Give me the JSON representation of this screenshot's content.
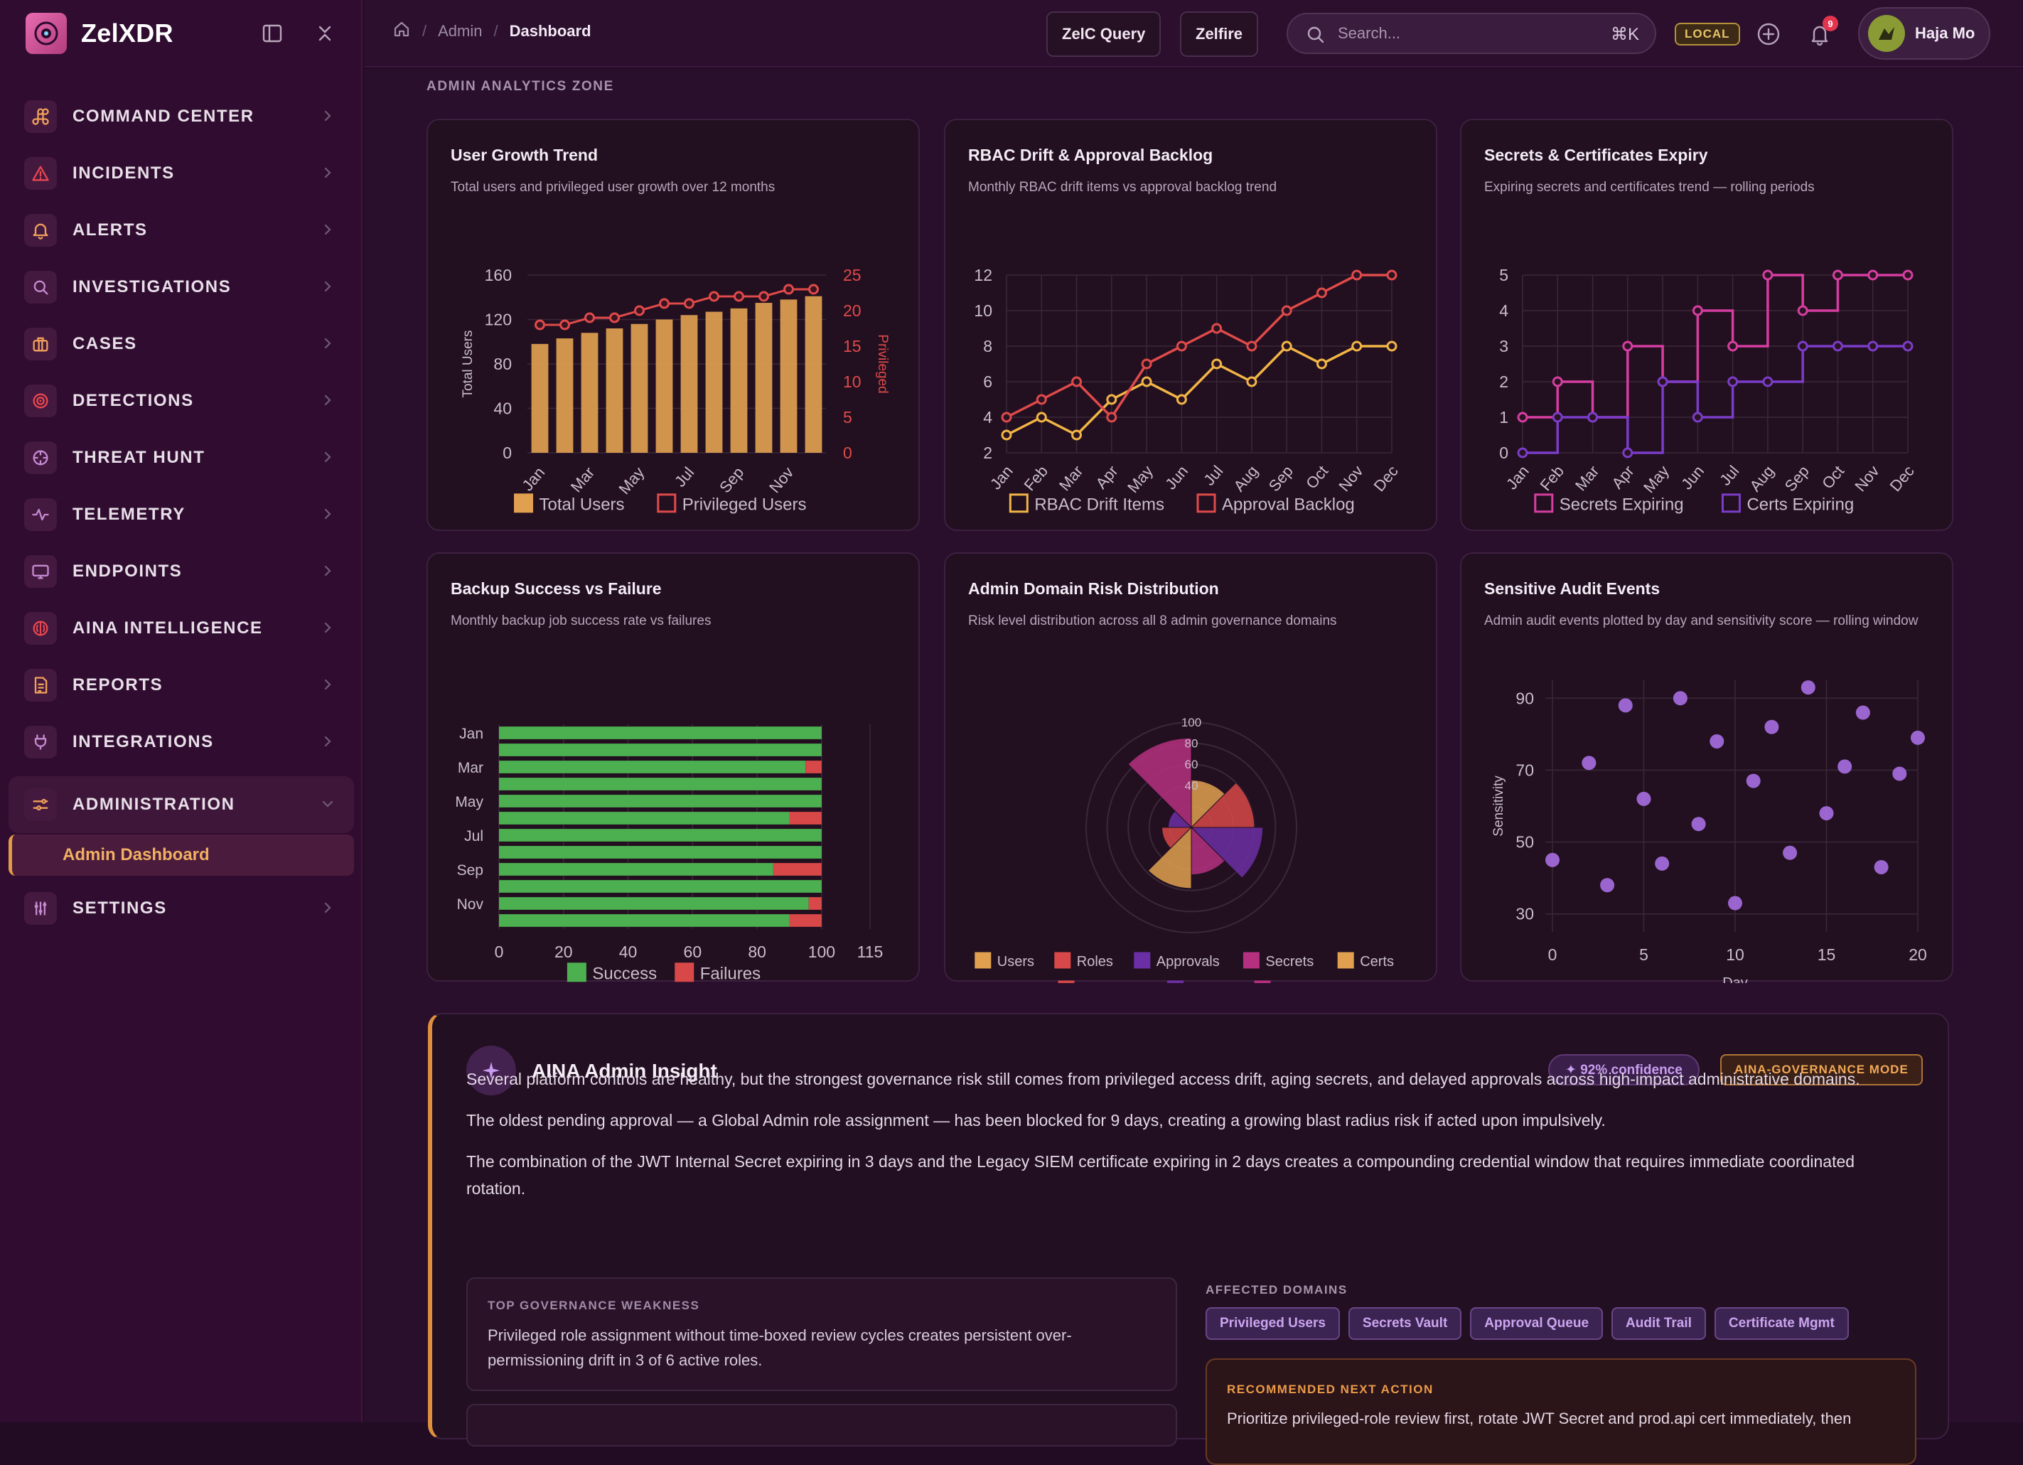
{
  "app": {
    "name": "ZelXDR"
  },
  "sidebar": {
    "items": [
      {
        "label": "COMMAND CENTER",
        "icon": "command-icon",
        "color": "#f0a05a"
      },
      {
        "label": "INCIDENTS",
        "icon": "warning-icon",
        "color": "#e8474f"
      },
      {
        "label": "ALERTS",
        "icon": "bell-icon",
        "color": "#f0a05a"
      },
      {
        "label": "INVESTIGATIONS",
        "icon": "search-icon",
        "color": "#c58ad0"
      },
      {
        "label": "CASES",
        "icon": "briefcase-icon",
        "color": "#f0a05a"
      },
      {
        "label": "DETECTIONS",
        "icon": "target-icon",
        "color": "#e8474f"
      },
      {
        "label": "THREAT HUNT",
        "icon": "crosshair-icon",
        "color": "#c58ad0"
      },
      {
        "label": "TELEMETRY",
        "icon": "pulse-icon",
        "color": "#c58ad0"
      },
      {
        "label": "ENDPOINTS",
        "icon": "monitor-icon",
        "color": "#c58ad0"
      },
      {
        "label": "AINA INTELLIGENCE",
        "icon": "brain-icon",
        "color": "#e8474f"
      },
      {
        "label": "REPORTS",
        "icon": "document-icon",
        "color": "#f0a05a"
      },
      {
        "label": "INTEGRATIONS",
        "icon": "plug-icon",
        "color": "#c58ad0"
      },
      {
        "label": "ADMINISTRATION",
        "icon": "admin-sliders-icon",
        "color": "#f0a05a"
      }
    ],
    "sub_item": "Admin Dashboard",
    "settings": {
      "label": "SETTINGS",
      "icon": "settings-sliders-icon",
      "color": "#c58ad0"
    }
  },
  "header": {
    "breadcrumb": [
      "Admin",
      "Dashboard"
    ],
    "btn_query": "ZelC Query",
    "btn_zelfire": "Zelfire",
    "search_placeholder": "Search...",
    "search_shortcut": "⌘K",
    "env_badge": "LOCAL",
    "notif_count": "9",
    "user_name": "Haja Mo"
  },
  "zone_label": "ADMIN ANALYTICS ZONE",
  "cards": {
    "user_growth": {
      "title": "User Growth Trend",
      "subtitle": "Total users and privileged user growth over 12 months"
    },
    "rbac": {
      "title": "RBAC Drift & Approval Backlog",
      "subtitle": "Monthly RBAC drift items vs approval backlog trend"
    },
    "secrets": {
      "title": "Secrets & Certificates Expiry",
      "subtitle": "Expiring secrets and certificates trend — rolling periods"
    },
    "backup": {
      "title": "Backup Success vs Failure",
      "subtitle": "Monthly backup job success rate vs failures"
    },
    "risk": {
      "title": "Admin Domain Risk Distribution",
      "subtitle": "Risk level distribution across all 8 admin governance domains"
    },
    "audit": {
      "title": "Sensitive Audit Events",
      "subtitle": "Admin audit events plotted by day and sensitivity score — rolling window"
    }
  },
  "chart_data": [
    {
      "id": "user_growth",
      "type": "bar",
      "categories": [
        "Jan",
        "Feb",
        "Mar",
        "Apr",
        "May",
        "Jun",
        "Jul",
        "Aug",
        "Sep",
        "Oct",
        "Nov",
        "Dec"
      ],
      "tick_labels": [
        "Jan",
        "Mar",
        "May",
        "Jul",
        "Sep",
        "Nov"
      ],
      "series": [
        {
          "name": "Total Users",
          "type": "bar",
          "axis": "left",
          "color": "#e0a050",
          "values": [
            98,
            103,
            108,
            112,
            116,
            120,
            124,
            127,
            130,
            135,
            138,
            141
          ]
        },
        {
          "name": "Privileged Users",
          "type": "line",
          "axis": "right",
          "color": "#e04a4a",
          "values": [
            18,
            18,
            19,
            19,
            20,
            21,
            21,
            22,
            22,
            22,
            23,
            23
          ]
        }
      ],
      "ylabel": "Total Users",
      "ylabel_right": "Privileged",
      "ylim": [
        0,
        160
      ],
      "yticks": [
        0,
        40,
        80,
        120,
        160
      ],
      "ylim_right": [
        0,
        25
      ],
      "yticks_right": [
        0,
        5,
        10,
        15,
        20,
        25
      ]
    },
    {
      "id": "rbac",
      "type": "line",
      "categories": [
        "Jan",
        "Feb",
        "Mar",
        "Apr",
        "May",
        "Jun",
        "Jul",
        "Aug",
        "Sep",
        "Oct",
        "Nov",
        "Dec"
      ],
      "series": [
        {
          "name": "RBAC Drift Items",
          "color": "#f2b545",
          "values": [
            3,
            4,
            3,
            5,
            6,
            5,
            7,
            6,
            8,
            7,
            8,
            8
          ]
        },
        {
          "name": "Approval Backlog",
          "color": "#e04a4a",
          "values": [
            4,
            5,
            6,
            4,
            7,
            8,
            9,
            8,
            10,
            11,
            12,
            12
          ]
        }
      ],
      "ylim": [
        2,
        12
      ],
      "yticks": [
        2,
        4,
        6,
        8,
        10,
        12
      ]
    },
    {
      "id": "secrets",
      "type": "line",
      "step": true,
      "categories": [
        "Jan",
        "Feb",
        "Mar",
        "Apr",
        "May",
        "Jun",
        "Jul",
        "Aug",
        "Sep",
        "Oct",
        "Nov",
        "Dec"
      ],
      "series": [
        {
          "name": "Secrets Expiring",
          "color": "#d63ea0",
          "values": [
            1,
            2,
            1,
            3,
            2,
            4,
            3,
            5,
            4,
            5,
            5,
            5
          ]
        },
        {
          "name": "Certs Expiring",
          "color": "#7b3cc8",
          "values": [
            0,
            1,
            1,
            0,
            2,
            1,
            2,
            2,
            3,
            3,
            3,
            3
          ]
        }
      ],
      "ylim": [
        0,
        5
      ],
      "yticks": [
        0,
        1,
        2,
        3,
        4,
        5
      ]
    },
    {
      "id": "backup",
      "type": "bar",
      "orientation": "horizontal",
      "stacked": true,
      "categories": [
        "Jan",
        "Feb",
        "Mar",
        "Apr",
        "May",
        "Jun",
        "Jul",
        "Aug",
        "Sep",
        "Oct",
        "Nov",
        "Dec"
      ],
      "tick_labels": [
        "Jan",
        "Mar",
        "May",
        "Jul",
        "Sep",
        "Nov"
      ],
      "series": [
        {
          "name": "Success",
          "color": "#4caf50",
          "values": [
            100,
            100,
            95,
            100,
            100,
            90,
            100,
            100,
            85,
            100,
            96,
            90
          ]
        },
        {
          "name": "Failures",
          "color": "#d84848",
          "values": [
            0,
            0,
            5,
            0,
            0,
            10,
            0,
            0,
            15,
            0,
            4,
            10
          ]
        }
      ],
      "xlim": [
        0,
        115
      ],
      "xticks": [
        0,
        20,
        40,
        60,
        80,
        100,
        115
      ]
    },
    {
      "id": "risk",
      "type": "polar-area",
      "categories": [
        "Users",
        "Roles",
        "Approvals",
        "Secrets",
        "Certs",
        "Retention",
        "Backup",
        "Audit"
      ],
      "colors": [
        "#e0a050",
        "#d84848",
        "#6b2fa5",
        "#b5307e",
        "#e0a050",
        "#d84848",
        "#6b2fa5",
        "#b5307e"
      ],
      "values": [
        45,
        60,
        68,
        45,
        58,
        28,
        22,
        85
      ],
      "rlim": [
        0,
        100
      ],
      "rticks": [
        40,
        60,
        80,
        100
      ]
    },
    {
      "id": "audit",
      "type": "scatter",
      "series": [
        {
          "name": "Audit Event",
          "color": "#a66de0",
          "x": [
            0,
            2,
            3,
            4,
            5,
            6,
            7,
            8,
            9,
            10,
            11,
            12,
            13,
            14,
            15,
            16,
            17,
            18,
            19,
            20
          ],
          "y": [
            45,
            72,
            38,
            88,
            62,
            44,
            90,
            55,
            78,
            33,
            67,
            82,
            47,
            93,
            58,
            71,
            86,
            43,
            69,
            79
          ]
        }
      ],
      "xlabel": "Day",
      "ylabel": "Sensitivity",
      "xlim": [
        0,
        20
      ],
      "xticks": [
        0,
        5,
        10,
        15,
        20
      ],
      "ylim": [
        25,
        95
      ],
      "yticks": [
        30,
        50,
        70,
        90
      ]
    }
  ],
  "insight": {
    "title": "AINA Admin Insight",
    "confidence": "✦ 92% confidence",
    "mode": "AINA-GOVERNANCE MODE",
    "paragraphs": [
      "Several platform controls are healthy, but the strongest governance risk still comes from privileged access drift, aging secrets, and delayed approvals across high-impact administrative domains.",
      "The oldest pending approval — a Global Admin role assignment — has been blocked for 9 days, creating a growing blast radius risk if acted upon impulsively.",
      "The combination of the JWT Internal Secret expiring in 3 days and the Legacy SIEM certificate expiring in 2 days creates a compounding credential window that requires immediate coordinated rotation."
    ],
    "weakness_label": "TOP GOVERNANCE WEAKNESS",
    "weakness_text": "Privileged role assignment without time-boxed review cycles creates persistent over-permissioning drift in 3 of 6 active roles.",
    "domains_label": "AFFECTED DOMAINS",
    "domains": [
      "Privileged Users",
      "Secrets Vault",
      "Approval Queue",
      "Audit Trail",
      "Certificate Mgmt"
    ],
    "action_label": "RECOMMENDED NEXT ACTION",
    "action_text": "Prioritize privileged-role review first, rotate JWT Secret and prod.api cert immediately, then"
  }
}
